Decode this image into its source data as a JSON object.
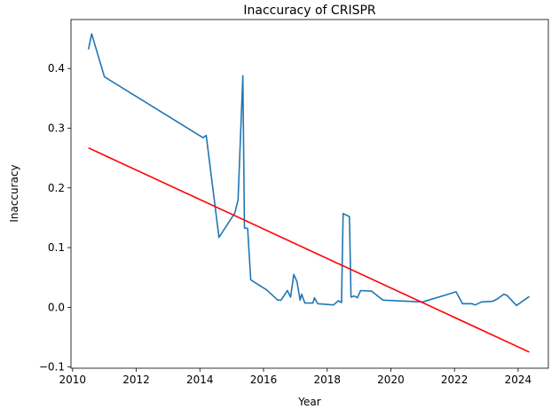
{
  "chart_data": {
    "type": "line",
    "title": "Inaccuracy of CRISPR",
    "xlabel": "Year",
    "ylabel": "Inaccuracy",
    "xlim": [
      2009.95,
      2024.95
    ],
    "ylim": [
      -0.102,
      0.482
    ],
    "xticks": [
      2010,
      2012,
      2014,
      2016,
      2018,
      2020,
      2022,
      2024
    ],
    "yticks": [
      -0.1,
      0.0,
      0.1,
      0.2,
      0.3,
      0.4
    ],
    "ytick_labels": [
      "−0.1",
      "0.0",
      "0.1",
      "0.2",
      "0.3",
      "0.4"
    ],
    "grid": false,
    "series": [
      {
        "color": "#1f77b4",
        "x": [
          2010.5,
          2010.6,
          2011.0,
          2014.1,
          2014.2,
          2014.6,
          2015.1,
          2015.2,
          2015.35,
          2015.4,
          2015.5,
          2015.6,
          2016.1,
          2016.45,
          2016.55,
          2016.75,
          2016.85,
          2016.95,
          2017.05,
          2017.15,
          2017.2,
          2017.3,
          2017.55,
          2017.6,
          2017.7,
          2018.2,
          2018.35,
          2018.45,
          2018.5,
          2018.7,
          2018.75,
          2018.85,
          2018.95,
          2019.05,
          2019.4,
          2019.75,
          2021.0,
          2022.05,
          2022.25,
          2022.55,
          2022.65,
          2022.85,
          2023.2,
          2023.35,
          2023.55,
          2023.65,
          2023.95,
          2024.35
        ],
        "values": [
          0.432,
          0.458,
          0.386,
          0.284,
          0.288,
          0.117,
          0.158,
          0.18,
          0.388,
          0.133,
          0.132,
          0.046,
          0.029,
          0.012,
          0.012,
          0.028,
          0.017,
          0.055,
          0.043,
          0.012,
          0.022,
          0.007,
          0.007,
          0.016,
          0.006,
          0.004,
          0.011,
          0.008,
          0.157,
          0.152,
          0.017,
          0.019,
          0.016,
          0.028,
          0.027,
          0.012,
          0.009,
          0.026,
          0.006,
          0.006,
          0.004,
          0.009,
          0.01,
          0.014,
          0.022,
          0.02,
          0.003,
          0.018
        ]
      },
      {
        "color": "#ff0000",
        "x": [
          2010.5,
          2024.35
        ],
        "values": [
          0.267,
          -0.075
        ]
      }
    ]
  }
}
